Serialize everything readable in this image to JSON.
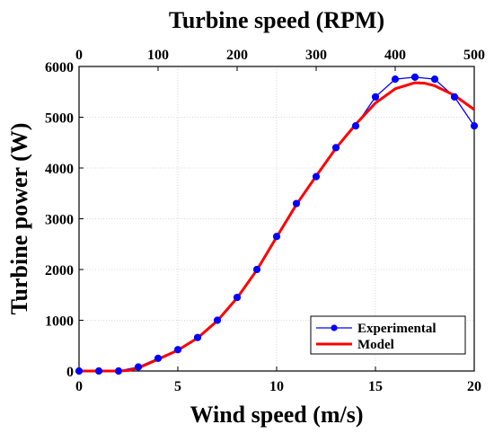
{
  "chart_data": {
    "type": "line",
    "title": "",
    "xlabel": "Wind speed (m/s)",
    "ylabel": "Turbine power (W)",
    "x2label": "Turbine speed (RPM)",
    "xlim": [
      0,
      20
    ],
    "ylim": [
      0,
      6000
    ],
    "x2lim": [
      0,
      500
    ],
    "xticks": [
      0,
      5,
      10,
      15,
      20
    ],
    "yticks": [
      0,
      1000,
      2000,
      3000,
      4000,
      5000,
      6000
    ],
    "x2ticks": [
      0,
      100,
      200,
      300,
      400,
      500
    ],
    "grid": true,
    "legend_position": "bottom-right",
    "series": [
      {
        "name": "Experimental",
        "color": "#0000ff",
        "marker": "circle",
        "x": [
          0,
          1,
          2,
          3,
          4,
          5,
          6,
          7,
          8,
          9,
          10,
          11,
          12,
          13,
          14,
          15,
          16,
          17,
          18,
          19,
          20
        ],
        "y": [
          0,
          0,
          0,
          80,
          250,
          420,
          660,
          1000,
          1450,
          2000,
          2650,
          3300,
          3830,
          4400,
          4830,
          5400,
          5750,
          5790,
          5750,
          5400,
          4830
        ]
      },
      {
        "name": "Model",
        "color": "#ff0000",
        "marker": "none",
        "x": [
          0,
          1,
          2,
          2.5,
          3,
          4,
          5,
          6,
          7,
          8,
          9,
          10,
          11,
          12,
          13,
          14,
          15,
          16,
          17,
          17.5,
          18,
          19,
          20
        ],
        "y": [
          0,
          0,
          0,
          10,
          60,
          230,
          410,
          650,
          990,
          1440,
          1990,
          2640,
          3280,
          3840,
          4390,
          4860,
          5280,
          5560,
          5680,
          5670,
          5620,
          5430,
          5150
        ]
      }
    ]
  }
}
